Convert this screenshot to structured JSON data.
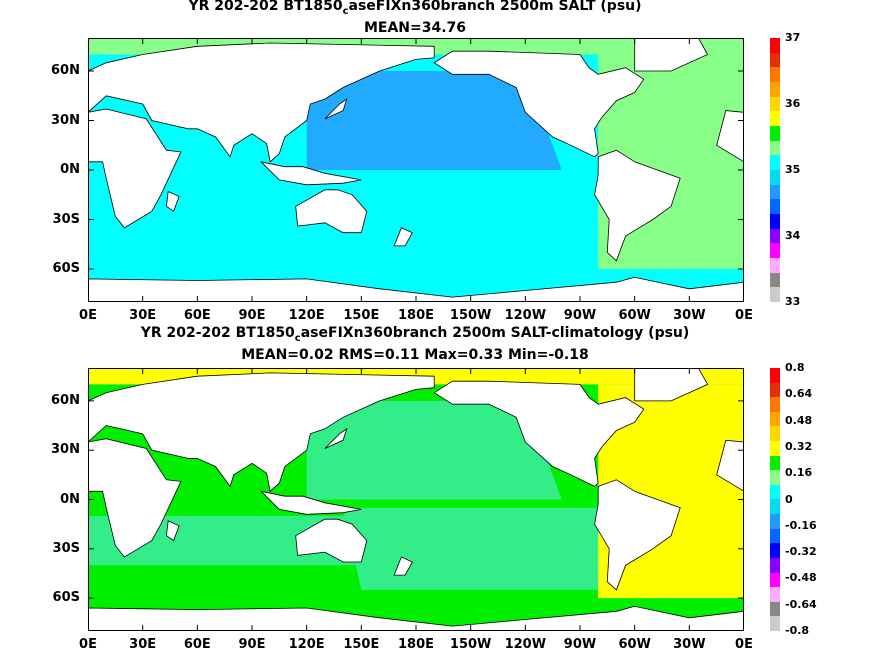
{
  "panels": [
    {
      "title_pre": "YR 202-202 BT1850",
      "title_sub": "c",
      "title_post": "aseFIXn360branch 2500m SALT (psu)",
      "stats": "MEAN=34.76",
      "colorbar_labels": [
        "37",
        "36",
        "35",
        "34",
        "33"
      ],
      "colors": [
        "#ff0000",
        "#e33000",
        "#ff7700",
        "#ffa500",
        "#ffd700",
        "#ffff00",
        "#00ee00",
        "#88ff88",
        "#00ffff",
        "#00ddee",
        "#2299ff",
        "#0066ff",
        "#0000ff",
        "#8800ff",
        "#ff00ff",
        "#ffaaff",
        "#888888",
        "#cccccc"
      ],
      "lat_labels": [
        "60N",
        "30N",
        "0N",
        "30S",
        "60S"
      ],
      "lon_labels": [
        "0E",
        "30E",
        "60E",
        "90E",
        "120E",
        "150E",
        "180E",
        "150W",
        "120W",
        "90W",
        "60W",
        "30W",
        "0E"
      ],
      "regions": {
        "pacific_north": "#22aaff",
        "pacific_south": "#00ffff",
        "indian": "#00ffff",
        "atlantic": "#88ff88",
        "southern": "#00ffff"
      }
    },
    {
      "title_pre": "YR 202-202 BT1850",
      "title_sub": "c",
      "title_post": "aseFIXn360branch 2500m SALT-climatology (psu)",
      "stats": "MEAN=0.02   RMS=0.11   Max=0.33   Min=-0.18",
      "colorbar_labels": [
        "0.8",
        "0.64",
        "0.48",
        "0.32",
        "0.16",
        "0",
        "-0.16",
        "-0.32",
        "-0.48",
        "-0.64",
        "-0.8"
      ],
      "colors": [
        "#ff0000",
        "#e33000",
        "#ff7700",
        "#ffa500",
        "#ffd700",
        "#ffff00",
        "#00ee00",
        "#88ff88",
        "#00ffff",
        "#00ddee",
        "#2299ff",
        "#0066ff",
        "#0000ff",
        "#8800ff",
        "#ff00ff",
        "#ffaaff",
        "#888888",
        "#cccccc"
      ],
      "lat_labels": [
        "60N",
        "30N",
        "0N",
        "30S",
        "60S"
      ],
      "lon_labels": [
        "0E",
        "30E",
        "60E",
        "90E",
        "120E",
        "150E",
        "180E",
        "150W",
        "120W",
        "90W",
        "60W",
        "30W",
        "0E"
      ],
      "regions": {
        "pacific_north": "#33ee88",
        "pacific_south": "#33ee88",
        "indian": "#33ee88",
        "atlantic": "#ffff00",
        "southern": "#00ee00"
      }
    }
  ]
}
